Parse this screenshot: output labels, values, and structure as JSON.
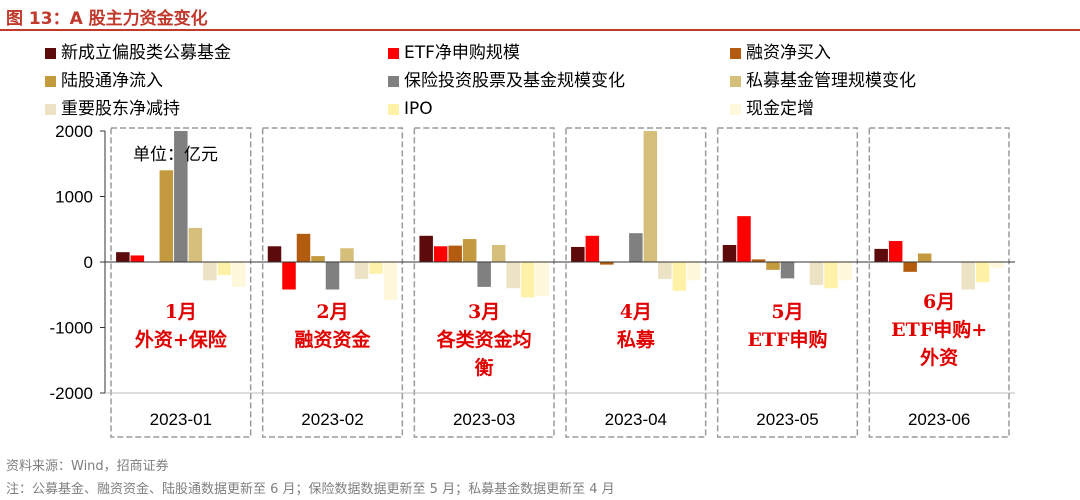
{
  "figure": {
    "title": "图 13：A 股主力资金变化",
    "source": "资料来源：Wind，招商证券",
    "note": "注：公募基金、融资资金、陆股通数据更新至 6 月；保险数据数据更新至 5 月；私募基金数据更新至 4 月"
  },
  "chart_data": {
    "type": "bar",
    "unit_label": "单位：亿元",
    "categories": [
      "2023-01",
      "2023-02",
      "2023-03",
      "2023-04",
      "2023-05",
      "2023-06"
    ],
    "ylim": [
      -2000,
      2000
    ],
    "yticks": [
      2000,
      1000,
      0,
      -1000,
      -2000
    ],
    "grid": false,
    "legend_position": "top",
    "series": [
      {
        "name": "新成立偏股类公募基金",
        "color": "#5c0a0a",
        "values": [
          150,
          240,
          400,
          230,
          260,
          200
        ]
      },
      {
        "name": "ETF净申购规模",
        "color": "#ff0000",
        "values": [
          100,
          -420,
          240,
          400,
          700,
          320
        ]
      },
      {
        "name": "融资净买入",
        "color": "#b35c0f",
        "values": [
          0,
          430,
          250,
          -40,
          40,
          -150
        ]
      },
      {
        "name": "陆股通净流入",
        "color": "#c39a3e",
        "values": [
          1400,
          90,
          350,
          0,
          -120,
          130
        ]
      },
      {
        "name": "保险投资股票及基金规模变化",
        "color": "#808080",
        "values": [
          2000,
          -420,
          -380,
          440,
          -250,
          null
        ]
      },
      {
        "name": "私募基金管理规模变化",
        "color": "#d6bf7a",
        "values": [
          520,
          210,
          260,
          2000,
          null,
          null
        ]
      },
      {
        "name": "重要股东净减持",
        "color": "#ece2c4",
        "values": [
          -280,
          -260,
          -400,
          -260,
          -350,
          -420
        ]
      },
      {
        "name": "IPO",
        "color": "#fff2a8",
        "values": [
          -200,
          -180,
          -540,
          -440,
          -400,
          -310
        ]
      },
      {
        "name": "现金定增",
        "color": "#fff8dc",
        "values": [
          -380,
          -580,
          -520,
          -280,
          -280,
          -90
        ]
      }
    ],
    "annotations": [
      {
        "month": "1月",
        "text": "外资+保险"
      },
      {
        "month": "2月",
        "text": "融资资金"
      },
      {
        "month": "3月",
        "text": "各类资金均衡"
      },
      {
        "month": "4月",
        "text": "私募"
      },
      {
        "month": "5月",
        "text": "ETF申购"
      },
      {
        "month": "6月",
        "text": "ETF申购+外资"
      }
    ]
  }
}
